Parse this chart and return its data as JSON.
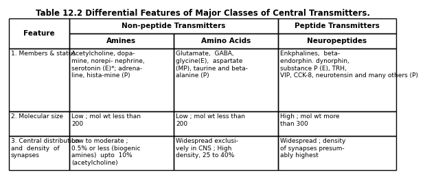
{
  "title": "Table 12.2 Differential Features of Major Classes of Central Transmitters.",
  "title_fontsize": 8.5,
  "bg_color": "#ffffff",
  "text_color": "#000000",
  "border_color": "#000000",
  "font_size": 6.5,
  "header_font_size": 7.5,
  "rows": [
    {
      "feature": "1. Members & status",
      "amines": "Acetylcholine, dopa-\nmine, norepi- nephrine,\nserotonin (E)*; adrena-\nline, hista-mine (P)",
      "amino_acids": "Glutamate,  GABA,\nglycine(E),  aspartate\n(MP), taurine and beta-\nalanine (P)",
      "neuropeptides": "Enkphalines,  beta-\nendorphin. dynorphin,\nsubstance P (E), TRH,\nVIP, CCK-8, neurotensin and many others (P)"
    },
    {
      "feature": "2. Molecular size",
      "amines": "Low ; mol wt less than\n200",
      "amino_acids": "Low ; mol wt less than\n200",
      "neuropeptides": "High ; mol wt more\nthan 300"
    },
    {
      "feature": "3. Central distribution\nand  density  of\nsynapses",
      "amines": "Low to moderate ;\n0.5% or less (biogenic\namines)  upto  10%\n(acetylcholine)",
      "amino_acids": "Widespread exclusi-\nvely in CNS ; High\ndensity, 25 to 40%",
      "neuropeptides": "Widespread ; density\nof synapses presum-\nably highest"
    }
  ]
}
